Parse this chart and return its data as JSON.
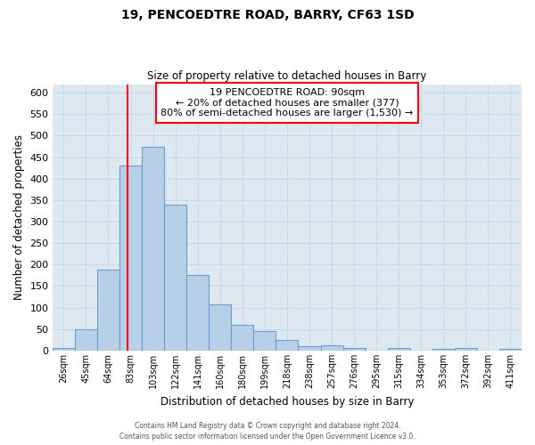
{
  "title": "19, PENCOEDTRE ROAD, BARRY, CF63 1SD",
  "subtitle": "Size of property relative to detached houses in Barry",
  "xlabel": "Distribution of detached houses by size in Barry",
  "ylabel": "Number of detached properties",
  "bar_labels": [
    "26sqm",
    "45sqm",
    "64sqm",
    "83sqm",
    "103sqm",
    "122sqm",
    "141sqm",
    "160sqm",
    "180sqm",
    "199sqm",
    "218sqm",
    "238sqm",
    "257sqm",
    "276sqm",
    "295sqm",
    "315sqm",
    "334sqm",
    "353sqm",
    "372sqm",
    "392sqm",
    "411sqm"
  ],
  "bar_heights": [
    5,
    50,
    188,
    430,
    475,
    340,
    175,
    108,
    60,
    46,
    24,
    10,
    12,
    5,
    0,
    5,
    0,
    3,
    5,
    0,
    3
  ],
  "bar_color": "#b8cfe8",
  "bar_edge_color": "#6a9fd4",
  "ylim": [
    0,
    620
  ],
  "yticks": [
    0,
    50,
    100,
    150,
    200,
    250,
    300,
    350,
    400,
    450,
    500,
    550,
    600
  ],
  "grid_color": "#c8d8e8",
  "background_color": "#dde8f0",
  "vline_color": "red",
  "annotation_title": "19 PENCOEDTRE ROAD: 90sqm",
  "annotation_line1": "← 20% of detached houses are smaller (377)",
  "annotation_line2": "80% of semi-detached houses are larger (1,530) →",
  "annotation_box_color": "white",
  "annotation_box_edge": "red",
  "footer1": "Contains HM Land Registry data © Crown copyright and database right 2024.",
  "footer2": "Contains public sector information licensed under the Open Government Licence v3.0."
}
